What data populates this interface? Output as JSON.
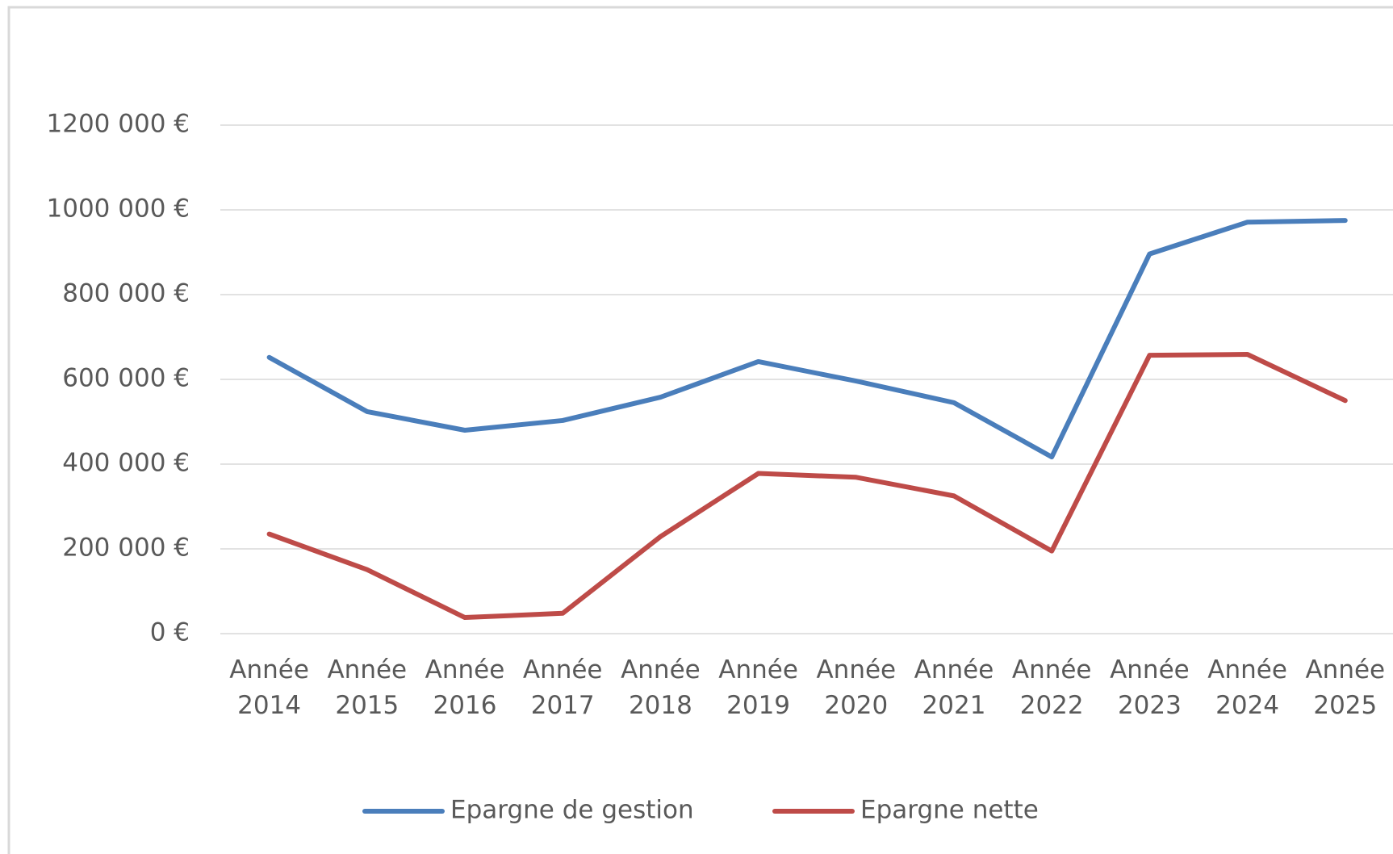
{
  "chart_data": {
    "type": "line",
    "categories": [
      "Année 2014",
      "Année 2015",
      "Année 2016",
      "Année 2017",
      "Année 2018",
      "Année 2019",
      "Année 2020",
      "Année 2021",
      "Année 2022",
      "Année 2023",
      "Année 2024",
      "Année 2025"
    ],
    "series": [
      {
        "name": "Epargne de gestion",
        "color": "#4a7ebb",
        "values": [
          652000,
          524000,
          480000,
          503000,
          558000,
          642000,
          596000,
          545000,
          417000,
          896000,
          971000,
          975000
        ]
      },
      {
        "name": "Epargne nette",
        "color": "#be4b48",
        "values": [
          235000,
          151000,
          38000,
          48000,
          229000,
          378000,
          369000,
          325000,
          195000,
          657000,
          659000,
          550000
        ]
      }
    ],
    "ylim": [
      0,
      1200000
    ],
    "yticks": [
      {
        "value": 0,
        "label": "0 €"
      },
      {
        "value": 200000,
        "label": "200 000 €"
      },
      {
        "value": 400000,
        "label": "400 000 €"
      },
      {
        "value": 600000,
        "label": "600 000 €"
      },
      {
        "value": 800000,
        "label": "800 000 €"
      },
      {
        "value": 1000000,
        "label": "1000 000 €"
      },
      {
        "value": 1200000,
        "label": "1200 000 €"
      }
    ],
    "grid": true,
    "legend": "bottom"
  }
}
